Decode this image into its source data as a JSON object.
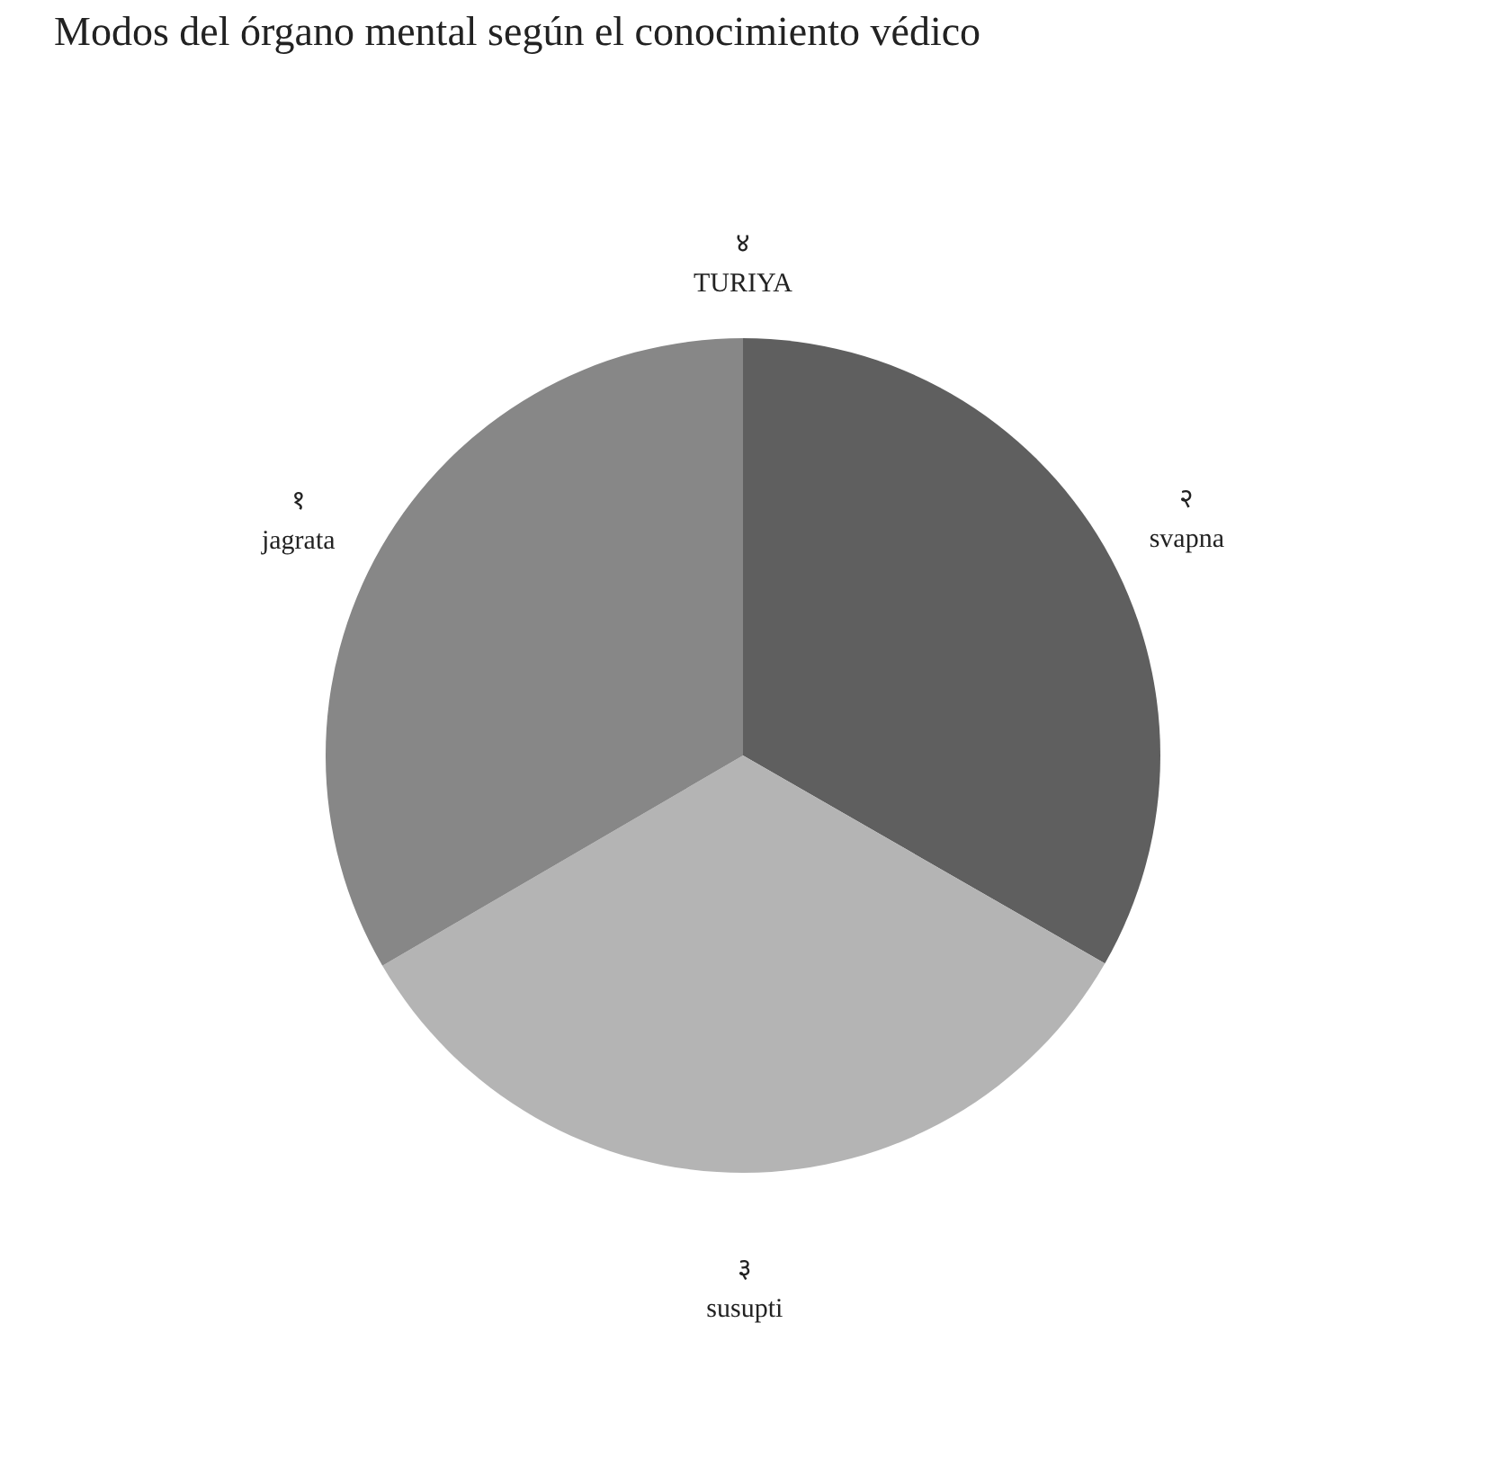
{
  "chart_data": {
    "type": "pie",
    "title": "Modos del órgano mental según el conocimiento védico",
    "categories": [
      "TURIYA",
      "svapna",
      "susupti",
      "jagrata"
    ],
    "values": [
      0,
      33.3,
      33.3,
      33.4
    ],
    "annotations": [
      {
        "text": "४",
        "x": "TURIYA"
      },
      {
        "text": "२",
        "x": "svapna"
      },
      {
        "text": "३",
        "x": "susupti"
      },
      {
        "text": "१",
        "x": "jagrata"
      }
    ],
    "colors": [
      "#3f3f3f",
      "#5f5f5f",
      "#b4b4b4",
      "#878787"
    ],
    "legend": false
  }
}
